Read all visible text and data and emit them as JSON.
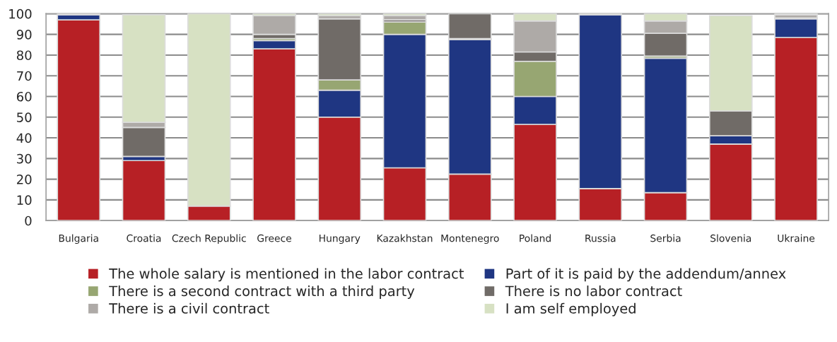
{
  "chart_data": {
    "type": "bar",
    "stacked": true,
    "categories": [
      "Bulgaria",
      "Croatia",
      "Czech Republic",
      "Greece",
      "Hungary",
      "Kazakhstan",
      "Montenegro",
      "Poland",
      "Russia",
      "Serbia",
      "Slovenia",
      "Ukraine"
    ],
    "series": [
      {
        "name": "The whole salary is mentioned in the labor contract",
        "color": "#b72025",
        "values": [
          97,
          29,
          7,
          83,
          50,
          25.5,
          22.5,
          46.5,
          15.5,
          13.5,
          37,
          88.5
        ]
      },
      {
        "name": "Part of it is paid by the addendum/annex",
        "color": "#1f3682",
        "values": [
          2.5,
          2,
          0,
          4,
          13,
          64.5,
          65,
          13.5,
          84,
          65,
          4,
          9
        ]
      },
      {
        "name": "There is a second contract with a third party",
        "color": "#97a672",
        "values": [
          0,
          null,
          0,
          1,
          5,
          6,
          0.5,
          17,
          0,
          1,
          null,
          0.5
        ]
      },
      {
        "name": "There is no labor contract",
        "color": "#706b67",
        "values": [
          0,
          14,
          0,
          2,
          29.5,
          1,
          12,
          4.5,
          0,
          11,
          12,
          0
        ]
      },
      {
        "name": "There is a civil contract",
        "color": "#aeaaa7",
        "values": [
          0.5,
          2.5,
          0,
          9,
          1.5,
          2,
          0,
          15,
          0,
          6,
          null,
          1.5
        ]
      },
      {
        "name": "I am self employed",
        "color": "#d7e1c3",
        "values": [
          0,
          52,
          93,
          1,
          1,
          1,
          0,
          3.5,
          0.5,
          3.5,
          46,
          0.5
        ]
      }
    ],
    "ylim": [
      0,
      100
    ],
    "yticks": [
      0,
      10,
      20,
      30,
      40,
      50,
      60,
      70,
      80,
      90,
      100
    ],
    "grid": "y",
    "legend": "bottom"
  }
}
